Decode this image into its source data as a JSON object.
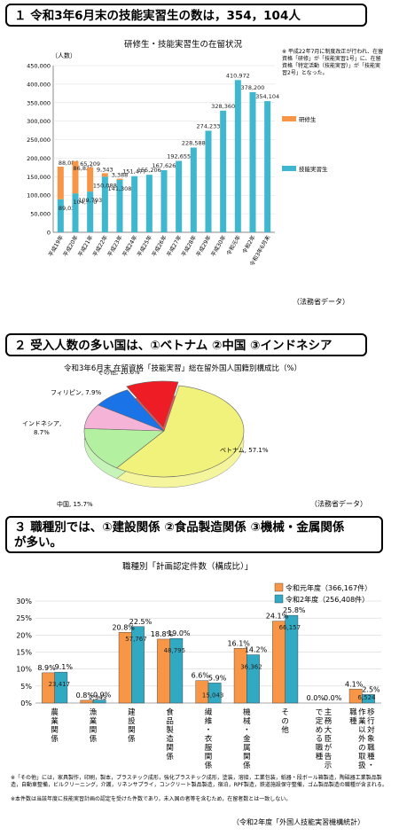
{
  "headings": {
    "h1": "１ 令和3年6月末の技能実習生の数は，354，104人",
    "h2": "２ 受入人数の多い国は、①ベトナム ②中国 ③インドネシア",
    "h3_line1": "３ 職種別では、①建設関係 ②食品製造関係 ③機械・金属関係",
    "h3_line2": "が多い。"
  },
  "source1": "（法務省データ）",
  "source2": "（法務省データ）",
  "source3": "（令和2年度「外国人技能実習機構統計）",
  "chart_data": [
    {
      "type": "bar",
      "title": "研修生・技能実習生の在留状況",
      "ylabel": "（人数）",
      "ylim": [
        0,
        450000
      ],
      "yticks": [
        "0",
        "50,000",
        "100,000",
        "150,000",
        "200,000",
        "250,000",
        "300,000",
        "350,000",
        "400,000",
        "450,000"
      ],
      "categories": [
        "平成19年",
        "平成20年",
        "平成21年",
        "平成22年",
        "平成23年",
        "平成24年",
        "平成25年",
        "平成26年",
        "平成27年",
        "平成28年",
        "平成29年",
        "平成30年",
        "令和元年",
        "令和2年",
        "令和3年6月末"
      ],
      "series": [
        {
          "name": "技能実習生",
          "color": "#3fb7cf",
          "values": [
            89033,
            104990,
            109793,
            150088,
            141308,
            151477,
            155206,
            167626,
            192655,
            228588,
            274233,
            328360,
            410972,
            378200,
            354104
          ]
        },
        {
          "name": "研修生",
          "color": "#f79646",
          "values": [
            88086,
            86826,
            65209,
            9343,
            3388,
            0,
            0,
            0,
            0,
            0,
            0,
            0,
            0,
            0,
            0
          ]
        }
      ],
      "value_labels": [
        "89,033",
        "104,990",
        "109,793",
        "150,088",
        "141,308",
        "151,477",
        "155,206",
        "167,626",
        "192,655",
        "228,588",
        "274,233",
        "328,360",
        "410,972",
        "378,200",
        "354,104"
      ],
      "trainee_labels": [
        "88,086",
        "86,826",
        "65,209",
        "9,343",
        "3,388"
      ],
      "note": "※ 平成22年7月に制度改正が行われ、在留資格「研修」が「技能実習1号」に、在留資格「特定活動（技能実習）」が「技能実習2号」となった。"
    },
    {
      "type": "pie",
      "title": "令和3年6月末 在留資格「技能実習」総在留外国人国籍別構成比（%）",
      "slices": [
        {
          "label": "ベトナム",
          "value": 57.1,
          "text": "ベトナム, 57.1%",
          "color": "#f1f27b"
        },
        {
          "label": "中国",
          "value": 15.7,
          "text": "中国, 15.7%",
          "color": "#b3f0a0"
        },
        {
          "label": "インドネシア",
          "value": 8.7,
          "text_a": "インドネシア,",
          "text_b": "8.7%",
          "color": "#f6b3d8"
        },
        {
          "label": "フィリピン",
          "value": 7.9,
          "text": "フィリピン, 7.9%",
          "color": "#1b73e8"
        },
        {
          "label": "その他",
          "value": 10.6,
          "text": "その他, 10.6%",
          "color": "#ee1c24"
        }
      ]
    },
    {
      "type": "bar",
      "title": "職種別「計画認定件数（構成比）」",
      "ylim": [
        0,
        30
      ],
      "yticks": [
        "0%",
        "5%",
        "10%",
        "15%",
        "20%",
        "25%",
        "30%"
      ],
      "categories": [
        "農業関係",
        "漁業関係",
        "建設関係",
        "食品製造関係",
        "繊維・衣服関係",
        "機械・金属関係",
        "その他",
        "主務大臣が告示で定める職種",
        "移行対象職種・作業以外の取扱職種"
      ],
      "series": [
        {
          "name": "令和元年度（366,167件）",
          "color": "#f79646",
          "percent": [
            8.9,
            0.8,
            20.8,
            18.8,
            6.6,
            16.1,
            24.1,
            0.0,
            4.1
          ],
          "percent_labels": [
            "8.9%",
            "0.8%",
            "20.8%",
            "18.8%",
            "6.6%",
            "16.1%",
            "24.1%",
            "0.0%",
            "4.1%"
          ]
        },
        {
          "name": "令和2年度（256,408件）",
          "color": "#31a9c3",
          "percent": [
            9.1,
            0.9,
            22.5,
            19.0,
            5.9,
            14.2,
            25.8,
            0.0,
            2.5
          ],
          "percent_labels": [
            "9.1%",
            "0.9%",
            "22.5%",
            "19.0%",
            "5.9%",
            "14.2%",
            "25.8%",
            "0.0%",
            "2.5%"
          ],
          "counts": [
            "23,417",
            "2,343",
            "57,767",
            "48,795",
            "15,043",
            "36,362",
            "66,157",
            "",
            "6,524"
          ]
        }
      ],
      "footnote1": "※「その他」には，家具製作，印刷，製本，プラスチック成形，強化プラスチック成形，塗装，溶接，工業包装，紙器・段ボール箱製造，陶磁器工業製品製造，自動車整備，ビルクリーニング，介護，リネンサプライ，コンクリート製品製造，宿泊，RPF製造，鉄道施設保守整備，ゴム製品製造の職種が含まれる。",
      "footnote2": "※本件数は当該年度に技能実習計画の認定を受けた件数であり，未入国の者等を含むため，在留者数とは一致しない。"
    }
  ]
}
